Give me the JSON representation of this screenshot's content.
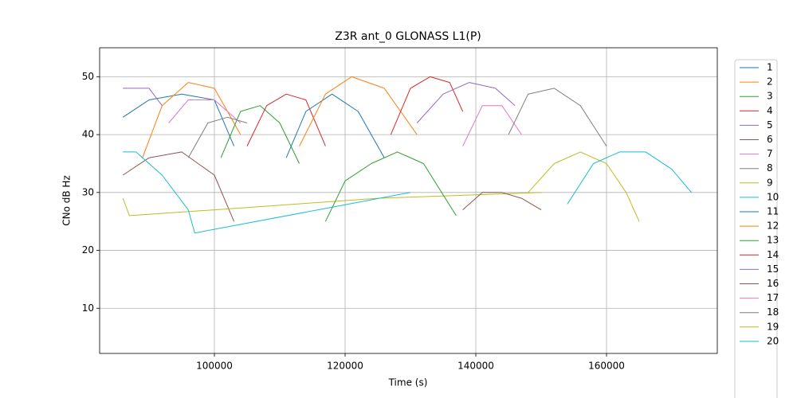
{
  "chart_data": {
    "type": "line",
    "title": "Z3R ant_0 GLONASS L1(P)",
    "xlabel": "Time (s)",
    "ylabel": "CNo dB Hz",
    "xlim": [
      82440,
      176950
    ],
    "ylim": [
      2.2,
      55
    ],
    "xticks": [
      100000,
      120000,
      140000,
      160000
    ],
    "yticks": [
      10,
      20,
      30,
      40,
      50
    ],
    "grid": true,
    "series": [
      {
        "name": "1",
        "color": "#1f77b4",
        "x": [
          86000,
          90000,
          95000,
          100000,
          103000
        ],
        "values": [
          43,
          46,
          47,
          46,
          38
        ]
      },
      {
        "name": "2",
        "color": "#ff7f0e",
        "x": [
          89000,
          92000,
          96000,
          100000,
          104000
        ],
        "values": [
          36,
          45,
          49,
          48,
          40
        ]
      },
      {
        "name": "3",
        "color": "#2ca02c",
        "x": [
          101000,
          104000,
          107000,
          110000,
          113000
        ],
        "values": [
          36,
          44,
          45,
          42,
          35
        ]
      },
      {
        "name": "4",
        "color": "#d62728",
        "x": [
          105000,
          108000,
          111000,
          114000,
          117000
        ],
        "values": [
          38,
          45,
          47,
          46,
          38
        ]
      },
      {
        "name": "5",
        "color": "#9467bd",
        "x": [
          86000,
          88000,
          90000,
          92000
        ],
        "values": [
          48,
          48,
          48,
          45
        ]
      },
      {
        "name": "6",
        "color": "#8c564b",
        "x": [
          86000,
          90000,
          95000,
          100000,
          103000
        ],
        "values": [
          33,
          36,
          37,
          33,
          25
        ]
      },
      {
        "name": "7",
        "color": "#e377c2",
        "x": [
          93000,
          96000,
          100000,
          104000
        ],
        "values": [
          42,
          46,
          46,
          42
        ]
      },
      {
        "name": "8",
        "color": "#7f7f7f",
        "x": [
          96000,
          99000,
          102000,
          105000
        ],
        "values": [
          36,
          42,
          43,
          42
        ]
      },
      {
        "name": "9",
        "color": "#bcbd22",
        "x": [
          86000,
          87000,
          100000,
          125000,
          150000
        ],
        "values": [
          29,
          26,
          27,
          29,
          30
        ]
      },
      {
        "name": "10",
        "color": "#17becf",
        "x": [
          86000,
          88000,
          92000,
          96000,
          97000,
          130000
        ],
        "values": [
          37,
          37,
          33,
          27,
          23,
          30
        ]
      },
      {
        "name": "11",
        "color": "#1f77b4",
        "x": [
          111000,
          114000,
          118000,
          122000,
          126000
        ],
        "values": [
          36,
          44,
          47,
          44,
          36
        ]
      },
      {
        "name": "12",
        "color": "#ff7f0e",
        "x": [
          113000,
          117000,
          121000,
          126000,
          131000
        ],
        "values": [
          38,
          47,
          50,
          48,
          40
        ]
      },
      {
        "name": "13",
        "color": "#2ca02c",
        "x": [
          117000,
          120000,
          124000,
          128000,
          132000,
          137000
        ],
        "values": [
          25,
          32,
          35,
          37,
          35,
          26
        ]
      },
      {
        "name": "14",
        "color": "#d62728",
        "x": [
          127000,
          130000,
          133000,
          136000,
          138000
        ],
        "values": [
          40,
          48,
          50,
          49,
          44
        ]
      },
      {
        "name": "15",
        "color": "#9467bd",
        "x": [
          131000,
          135000,
          139000,
          143000,
          146000
        ],
        "values": [
          42,
          47,
          49,
          48,
          45
        ]
      },
      {
        "name": "16",
        "color": "#8c564b",
        "x": [
          138000,
          141000,
          144000,
          147000,
          150000
        ],
        "values": [
          27,
          30,
          30,
          29,
          27
        ]
      },
      {
        "name": "17",
        "color": "#e377c2",
        "x": [
          138000,
          141000,
          144000,
          147000
        ],
        "values": [
          38,
          45,
          45,
          40
        ]
      },
      {
        "name": "18",
        "color": "#7f7f7f",
        "x": [
          145000,
          148000,
          152000,
          156000,
          160000
        ],
        "values": [
          40,
          47,
          48,
          45,
          38
        ]
      },
      {
        "name": "19",
        "color": "#bcbd22",
        "x": [
          148000,
          152000,
          156000,
          160000,
          163000,
          165000
        ],
        "values": [
          30,
          35,
          37,
          35,
          30,
          25
        ]
      },
      {
        "name": "20",
        "color": "#17becf",
        "x": [
          154000,
          158000,
          162000,
          166000,
          170000,
          173000
        ],
        "values": [
          28,
          35,
          37,
          37,
          34,
          30
        ]
      }
    ]
  }
}
